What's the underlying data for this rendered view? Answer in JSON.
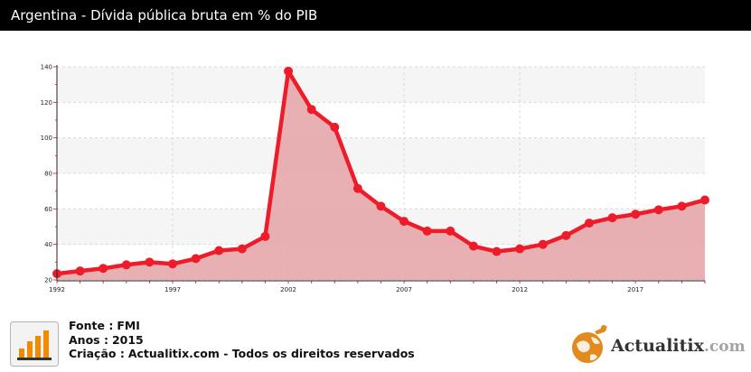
{
  "header": {
    "title": "Argentina - Dívida pública bruta em % do PIB"
  },
  "chart_data": {
    "type": "area",
    "title": "Argentina - Dívida pública bruta em % do PIB",
    "x": [
      1992,
      1993,
      1994,
      1995,
      1996,
      1997,
      1998,
      1999,
      2000,
      2001,
      2002,
      2003,
      2004,
      2005,
      2006,
      2007,
      2008,
      2009,
      2010,
      2011,
      2012,
      2013,
      2014,
      2015,
      2016,
      2017,
      2018,
      2019,
      2020
    ],
    "values": [
      23.5,
      25,
      26.5,
      28.5,
      30,
      29,
      32,
      36.5,
      37.5,
      44.5,
      137.5,
      116,
      106,
      71.5,
      61.5,
      53,
      47.5,
      47.5,
      39,
      36,
      37.5,
      40,
      45,
      52,
      55,
      57,
      59.5,
      61.5,
      65
    ],
    "xticks": [
      "1992",
      "1997",
      "2002",
      "2007",
      "2012",
      "2017"
    ],
    "yticks": [
      "20",
      "40",
      "60",
      "80",
      "100",
      "120",
      "140"
    ],
    "ylim": [
      20,
      140
    ],
    "xlim": [
      1992,
      2020
    ],
    "grid": true,
    "colors": {
      "line": "#ee1c2a",
      "fill": "#e6a7ab",
      "band": "#f5f5f5"
    }
  },
  "footer": {
    "source_label": "Fonte :",
    "source_value": "FMI",
    "years_label": "Anos :",
    "years_value": "2015",
    "credit_label": "Criação :",
    "credit_value": "Actualitix.com - Todos os direitos reservados",
    "icon": "bar-chart-icon",
    "logo_icon": "globe-icon",
    "logo_name": "Actualitix",
    "logo_domain": ".com"
  }
}
